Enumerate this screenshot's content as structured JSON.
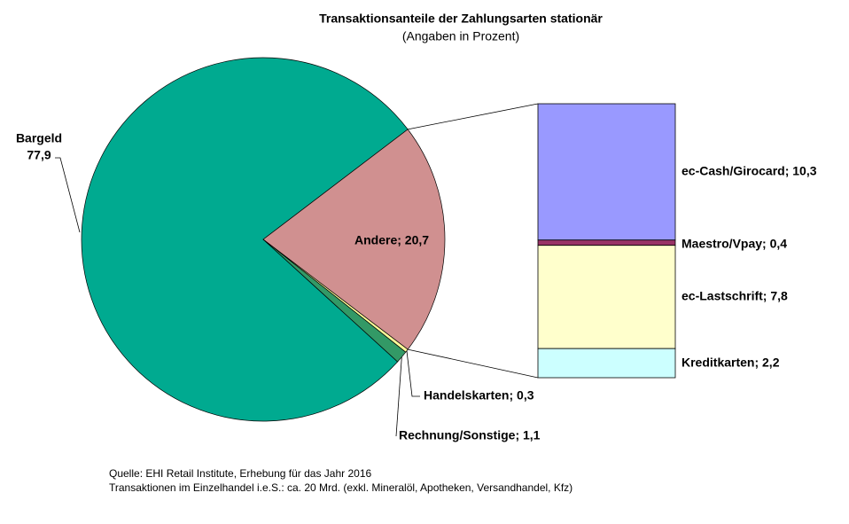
{
  "chart_data": [
    {
      "type": "pie",
      "title": "Transaktionsanteile der Zahlungsarten stationär",
      "subtitle": "(Angaben in Prozent)",
      "categories": [
        "Bargeld",
        null,
        null,
        null
      ],
      "values": [
        77.9,
        20.7,
        0.3,
        1.1
      ],
      "value_labels": [
        "77,9",
        "Andere; 20,7",
        "Handelskarten; 0,3",
        "Rechnung/Sonstige; 1,1"
      ],
      "colors": [
        "#00aa90",
        "#d09090",
        "#ffff99",
        "#339966"
      ]
    },
    {
      "type": "stacked-bar",
      "values": [
        10.3,
        0.4,
        7.8,
        2.2
      ],
      "value_labels": [
        "ec-Cash/Girocard; 10,3",
        "Maestro/Vpay; 0,4",
        "ec-Lastschrift; 7,8",
        "Kreditkarten; 2,2"
      ],
      "colors": [
        "#9999ff",
        "#993366",
        "#ffffcc",
        "#ccffff"
      ]
    }
  ],
  "notes": [
    "Quelle: EHI Retail Institute, Erhebung für das Jahr 2016",
    "Transaktionen  im Einzelhandel i.e.S.: ca. 20 Mrd. (exkl. Mineralöl, Apotheken, Versandhandel,  Kfz)"
  ]
}
